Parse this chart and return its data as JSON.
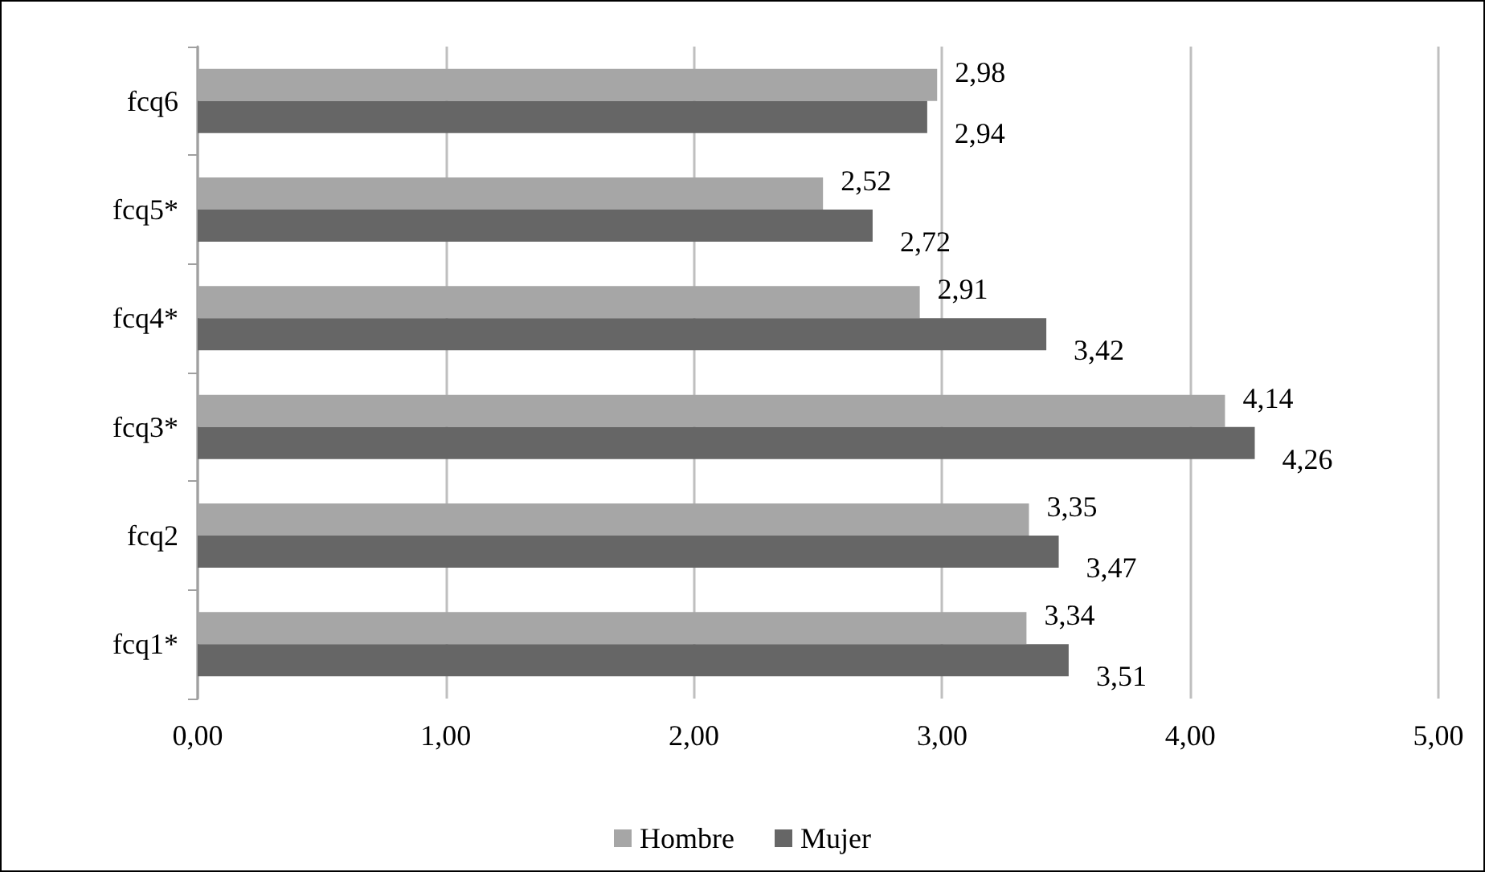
{
  "chart_data": {
    "type": "bar",
    "orientation": "horizontal",
    "categories": [
      "fcq6",
      "fcq5*",
      "fcq4*",
      "fcq3*",
      "fcq2",
      "fcq1*"
    ],
    "series": [
      {
        "name": "Hombre",
        "color": "#a6a6a6",
        "values": [
          2.98,
          2.52,
          2.91,
          4.14,
          3.35,
          3.34
        ],
        "value_labels": [
          "2,98",
          "2,52",
          "2,91",
          "4,14",
          "3,35",
          "3,34"
        ]
      },
      {
        "name": "Mujer",
        "color": "#666666",
        "values": [
          2.94,
          2.72,
          3.42,
          4.26,
          3.47,
          3.51
        ],
        "value_labels": [
          "2,94",
          "2,72",
          "3,42",
          "4,26",
          "3,47",
          "3,51"
        ]
      }
    ],
    "xlim": [
      0,
      5
    ],
    "xticks": [
      {
        "value": 0,
        "label": "0,00"
      },
      {
        "value": 1,
        "label": "1,00"
      },
      {
        "value": 2,
        "label": "2,00"
      },
      {
        "value": 3,
        "label": "3,00"
      },
      {
        "value": 4,
        "label": "4,00"
      },
      {
        "value": 5,
        "label": "5,00"
      }
    ],
    "grid": "x",
    "legend": "bottom"
  }
}
